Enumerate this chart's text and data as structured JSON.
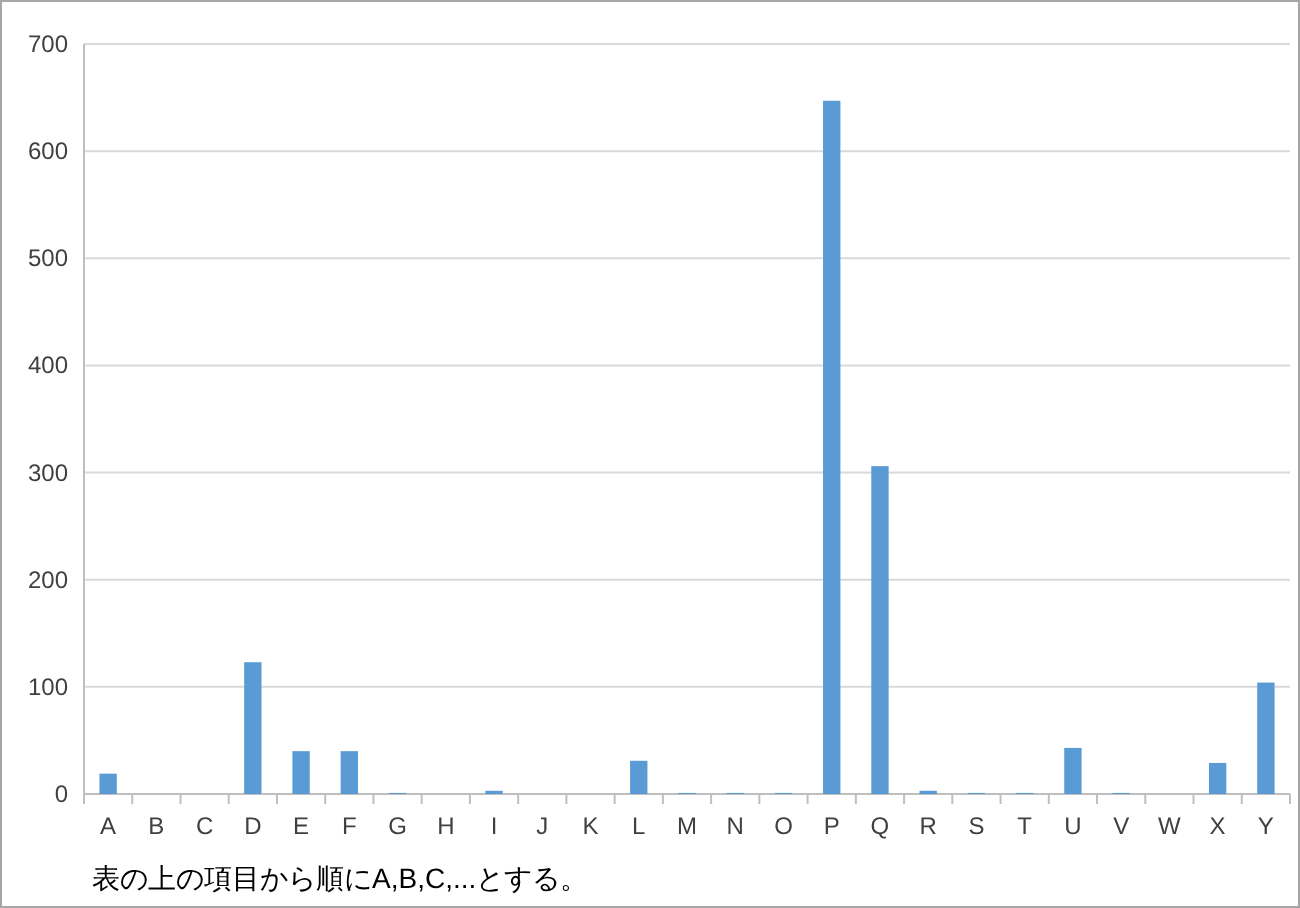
{
  "chart_data": {
    "type": "bar",
    "categories": [
      "A",
      "B",
      "C",
      "D",
      "E",
      "F",
      "G",
      "H",
      "I",
      "J",
      "K",
      "L",
      "M",
      "N",
      "O",
      "P",
      "Q",
      "R",
      "S",
      "T",
      "U",
      "V",
      "W",
      "X",
      "Y"
    ],
    "values": [
      19,
      0,
      0,
      123,
      40,
      40,
      1,
      0,
      3,
      0,
      0,
      31,
      1,
      1,
      1,
      647,
      306,
      3,
      1,
      1,
      43,
      1,
      0,
      29,
      104
    ],
    "color": "#5b9bd5",
    "ylim": [
      0,
      700
    ],
    "yticks": [
      0,
      100,
      200,
      300,
      400,
      500,
      600,
      700
    ],
    "grid": "y",
    "annotations": [
      "表の上の項目から順にA,B,C,...とする。"
    ]
  }
}
